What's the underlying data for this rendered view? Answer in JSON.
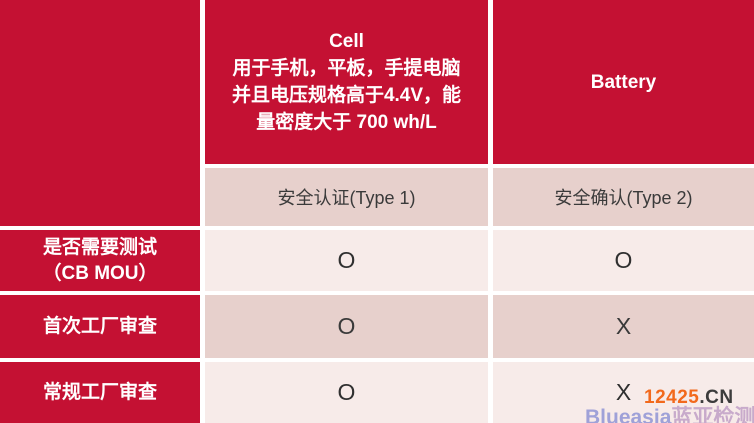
{
  "table": {
    "corner_label": "",
    "columns": {
      "cell": {
        "header": "Cell\n用于手机，平板，手提电脑\n并且电压规格高于4.4V，能\n量密度大于 700 wh/L",
        "subheader": "安全认证(Type 1)"
      },
      "battery": {
        "header": "Battery",
        "subheader": "安全确认(Type 2)"
      }
    },
    "rows": [
      {
        "label": "是否需要测试\n（CB MOU）",
        "cell": "O",
        "battery": "O"
      },
      {
        "label": "首次工厂审查",
        "cell": "O",
        "battery": "X"
      },
      {
        "label": "常规工厂审查",
        "cell": "O",
        "battery": "X"
      }
    ]
  },
  "watermark": {
    "site_number": "12425",
    "site_tld": ".CN",
    "brand_en": "Blueasia",
    "brand_cn": "蓝亚检测"
  },
  "colors": {
    "red": "#c41133",
    "pink_dark": "#e7d0cc",
    "pink_light": "#f7ebe9",
    "watermark_orange": "#f2691c",
    "watermark_blue": "#9fa1d8",
    "watermark_purple": "#c3a4c8"
  }
}
